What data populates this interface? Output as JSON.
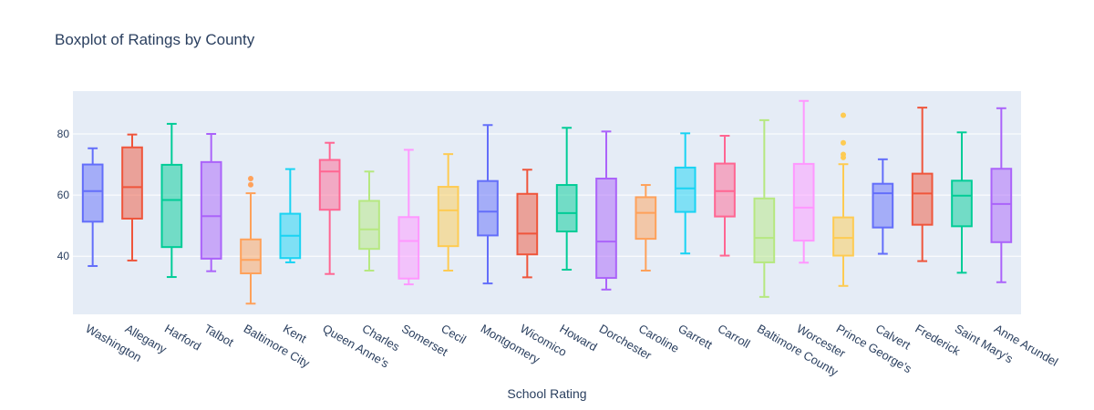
{
  "chart_data": {
    "type": "box",
    "title": "Boxplot of Ratings by County",
    "xlabel": "School Rating",
    "ylabel": "",
    "ylim": [
      21,
      94
    ],
    "yticks": [
      40,
      60,
      80
    ],
    "grid": true,
    "legend": "none",
    "colors": {
      "plot_bg": "#e5ecf6",
      "grid": "#ffffff",
      "text": "#2a3f5f",
      "palette": [
        "#636efa",
        "#ef553b",
        "#00cc96",
        "#ab63fa",
        "#ffa15a",
        "#19d3f3",
        "#ff6692",
        "#b6e880",
        "#ff97ff",
        "#fecb52"
      ]
    },
    "categories": [
      "Washington",
      "Allegany",
      "Harford",
      "Talbot",
      "Baltimore City",
      "Kent",
      "Queen Anne's",
      "Charles",
      "Somerset",
      "Cecil",
      "Montgomery",
      "Wicomico",
      "Howard",
      "Dorchester",
      "Caroline",
      "Garrett",
      "Carroll",
      "Baltimore County",
      "Worcester",
      "Prince George's",
      "Calvert",
      "Frederick",
      "Saint Mary's",
      "Anne Arundel"
    ],
    "series": [
      {
        "min": 36.8,
        "q1": 51.3,
        "median": 61.3,
        "q3": 70.0,
        "max": 75.3,
        "outliers": []
      },
      {
        "min": 38.6,
        "q1": 52.3,
        "median": 62.6,
        "q3": 75.6,
        "max": 79.8,
        "outliers": []
      },
      {
        "min": 33.2,
        "q1": 43.0,
        "median": 58.4,
        "q3": 69.9,
        "max": 83.3,
        "outliers": []
      },
      {
        "min": 35.1,
        "q1": 39.2,
        "median": 53.1,
        "q3": 70.8,
        "max": 80.0,
        "outliers": []
      },
      {
        "min": 24.5,
        "q1": 34.4,
        "median": 38.8,
        "q3": 45.5,
        "max": 60.6,
        "outliers": [
          63.4,
          65.4
        ]
      },
      {
        "min": 38.0,
        "q1": 39.4,
        "median": 46.7,
        "q3": 53.9,
        "max": 68.5,
        "outliers": []
      },
      {
        "min": 34.2,
        "q1": 55.2,
        "median": 67.7,
        "q3": 71.5,
        "max": 77.1,
        "outliers": []
      },
      {
        "min": 35.3,
        "q1": 42.4,
        "median": 48.8,
        "q3": 58.1,
        "max": 67.7,
        "outliers": []
      },
      {
        "min": 30.8,
        "q1": 32.7,
        "median": 45.0,
        "q3": 52.8,
        "max": 74.8,
        "outliers": []
      },
      {
        "min": 35.3,
        "q1": 43.3,
        "median": 55.0,
        "q3": 62.7,
        "max": 73.4,
        "outliers": []
      },
      {
        "min": 31.1,
        "q1": 46.8,
        "median": 54.6,
        "q3": 64.6,
        "max": 82.9,
        "outliers": []
      },
      {
        "min": 33.1,
        "q1": 40.6,
        "median": 47.4,
        "q3": 60.4,
        "max": 68.3,
        "outliers": []
      },
      {
        "min": 35.6,
        "q1": 48.1,
        "median": 54.1,
        "q3": 63.3,
        "max": 82.0,
        "outliers": []
      },
      {
        "min": 29.1,
        "q1": 32.9,
        "median": 44.8,
        "q3": 65.4,
        "max": 80.8,
        "outliers": []
      },
      {
        "min": 35.3,
        "q1": 45.7,
        "median": 54.2,
        "q3": 59.3,
        "max": 63.3,
        "outliers": []
      },
      {
        "min": 40.9,
        "q1": 54.5,
        "median": 62.2,
        "q3": 69.0,
        "max": 80.2,
        "outliers": []
      },
      {
        "min": 40.2,
        "q1": 53.0,
        "median": 61.3,
        "q3": 70.3,
        "max": 79.4,
        "outliers": []
      },
      {
        "min": 26.7,
        "q1": 38.0,
        "median": 46.0,
        "q3": 58.9,
        "max": 84.5,
        "outliers": []
      },
      {
        "min": 37.9,
        "q1": 45.1,
        "median": 55.9,
        "q3": 70.2,
        "max": 90.8,
        "outliers": []
      },
      {
        "min": 30.3,
        "q1": 40.2,
        "median": 46.0,
        "q3": 52.7,
        "max": 70.1,
        "outliers": [
          72.3,
          73.3,
          77.1,
          86.1
        ]
      },
      {
        "min": 40.8,
        "q1": 49.4,
        "median": 60.6,
        "q3": 63.7,
        "max": 71.7,
        "outliers": []
      },
      {
        "min": 38.4,
        "q1": 50.3,
        "median": 60.5,
        "q3": 67.0,
        "max": 88.6,
        "outliers": []
      },
      {
        "min": 34.6,
        "q1": 49.8,
        "median": 59.8,
        "q3": 64.7,
        "max": 80.5,
        "outliers": []
      },
      {
        "min": 31.5,
        "q1": 44.6,
        "median": 57.1,
        "q3": 68.6,
        "max": 88.4,
        "outliers": []
      }
    ]
  }
}
